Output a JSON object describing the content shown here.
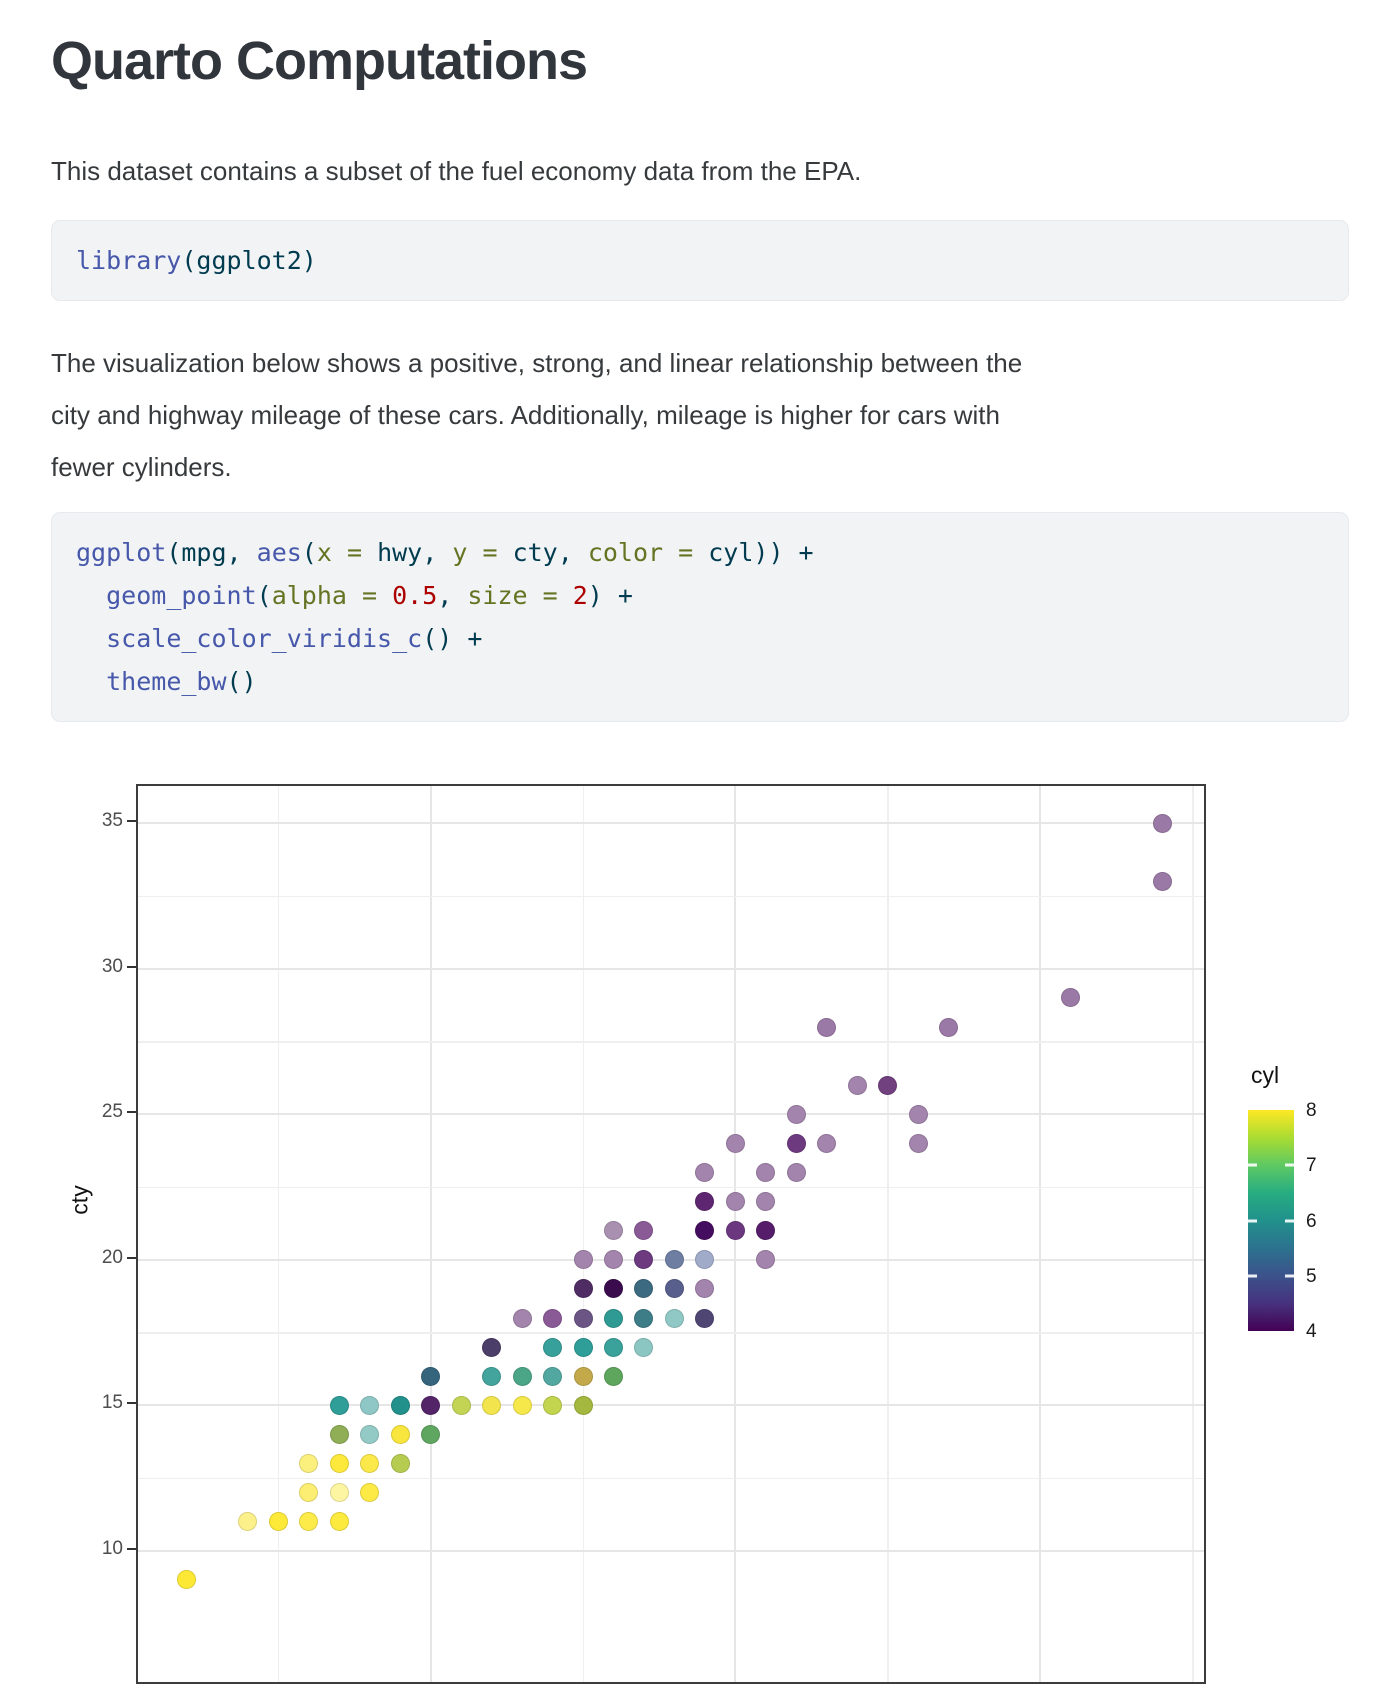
{
  "page": {
    "title": "Quarto Computations",
    "intro": "This dataset contains a subset of the fuel economy data from the EPA.",
    "description_lines": [
      "The visualization below shows a positive, strong, and linear relationship between the",
      "city and highway mileage of these cars. Additionally, mileage is higher for cars with",
      "fewer cylinders."
    ]
  },
  "syntax_colors": {
    "fu": "#4758AB",
    "at": "#657422",
    "fl": "#AD0000",
    "dv": "#AD0000",
    "ot": "#003B4F"
  },
  "code_blocks": [
    {
      "name": "library-call",
      "lines": [
        [
          {
            "t": "library",
            "c": "fu"
          },
          {
            "t": "(",
            "c": "ot"
          },
          {
            "t": "ggplot2",
            "c": "ot"
          },
          {
            "t": ")",
            "c": "ot"
          }
        ]
      ]
    },
    {
      "name": "ggplot-call",
      "lines": [
        [
          {
            "t": "ggplot",
            "c": "fu"
          },
          {
            "t": "(",
            "c": "ot"
          },
          {
            "t": "mpg",
            "c": "ot"
          },
          {
            "t": ", ",
            "c": "ot"
          },
          {
            "t": "aes",
            "c": "fu"
          },
          {
            "t": "(",
            "c": "ot"
          },
          {
            "t": "x = ",
            "c": "at"
          },
          {
            "t": "hwy",
            "c": "ot"
          },
          {
            "t": ", ",
            "c": "ot"
          },
          {
            "t": "y = ",
            "c": "at"
          },
          {
            "t": "cty",
            "c": "ot"
          },
          {
            "t": ", ",
            "c": "ot"
          },
          {
            "t": "color = ",
            "c": "at"
          },
          {
            "t": "cyl",
            "c": "ot"
          },
          {
            "t": ")) +",
            "c": "ot"
          }
        ],
        [
          {
            "t": "  ",
            "c": "ot"
          },
          {
            "t": "geom_point",
            "c": "fu"
          },
          {
            "t": "(",
            "c": "ot"
          },
          {
            "t": "alpha = ",
            "c": "at"
          },
          {
            "t": "0.5",
            "c": "fl"
          },
          {
            "t": ", ",
            "c": "ot"
          },
          {
            "t": "size = ",
            "c": "at"
          },
          {
            "t": "2",
            "c": "dv"
          },
          {
            "t": ") +",
            "c": "ot"
          }
        ],
        [
          {
            "t": "  ",
            "c": "ot"
          },
          {
            "t": "scale_color_viridis_c",
            "c": "fu"
          },
          {
            "t": "() +",
            "c": "ot"
          }
        ],
        [
          {
            "t": "  ",
            "c": "ot"
          },
          {
            "t": "theme_bw",
            "c": "fu"
          },
          {
            "t": "()",
            "c": "ot"
          }
        ]
      ]
    }
  ],
  "chart_data": {
    "type": "scatter",
    "x_field": "hwy",
    "y_field": "cty",
    "ylabel": "cty",
    "color_field": "cyl",
    "y_ticks": [
      35,
      30,
      25,
      20,
      15,
      10
    ],
    "y_minor_gridlines": [
      32.5,
      27.5,
      22.5,
      17.5,
      12.5
    ],
    "x_major_gridlines": [
      20,
      30,
      40
    ],
    "x_minor_gridlines": [
      15,
      25,
      35,
      45
    ],
    "x_axis_range": [
      10.1,
      45.2
    ],
    "grid": "on",
    "theme": "bw",
    "legend": {
      "title": "cyl",
      "position": "right",
      "ticks": [
        8,
        7,
        6,
        5,
        4
      ],
      "tick_marks": [
        7,
        6,
        5
      ],
      "viridis_gradient_top_to_bottom": [
        "#fde725",
        "#aadc32",
        "#5ec962",
        "#27ad81",
        "#21918c",
        "#2c728e",
        "#3b528b",
        "#46327e",
        "#440154"
      ]
    },
    "points": [
      {
        "hwy": 44,
        "cty": 35,
        "color": "#9b79a6"
      },
      {
        "hwy": 44,
        "cty": 33,
        "color": "#9b79a6"
      },
      {
        "hwy": 41,
        "cty": 29,
        "color": "#9b79a6"
      },
      {
        "hwy": 33,
        "cty": 28,
        "color": "#9b79a6"
      },
      {
        "hwy": 37,
        "cty": 28,
        "color": "#9b79a6"
      },
      {
        "hwy": 34,
        "cty": 26,
        "color": "#a284ac"
      },
      {
        "hwy": 35,
        "cty": 26,
        "color": "#71407f"
      },
      {
        "hwy": 32,
        "cty": 25,
        "color": "#a284ac"
      },
      {
        "hwy": 36,
        "cty": 25,
        "color": "#a284ac"
      },
      {
        "hwy": 30,
        "cty": 24,
        "color": "#a284ac"
      },
      {
        "hwy": 32,
        "cty": 24,
        "color": "#6d3a80"
      },
      {
        "hwy": 33,
        "cty": 24,
        "color": "#a284ac"
      },
      {
        "hwy": 36,
        "cty": 24,
        "color": "#a284ac"
      },
      {
        "hwy": 29,
        "cty": 23,
        "color": "#a284ac"
      },
      {
        "hwy": 31,
        "cty": 23,
        "color": "#a284ac"
      },
      {
        "hwy": 32,
        "cty": 23,
        "color": "#a284ac"
      },
      {
        "hwy": 29,
        "cty": 22,
        "color": "#5e2671"
      },
      {
        "hwy": 30,
        "cty": 22,
        "color": "#a284ac"
      },
      {
        "hwy": 31,
        "cty": 22,
        "color": "#a284ac"
      },
      {
        "hwy": 26,
        "cty": 21,
        "color": "#a990b1"
      },
      {
        "hwy": 27,
        "cty": 21,
        "color": "#8a5a97"
      },
      {
        "hwy": 29,
        "cty": 21,
        "color": "#450d5f"
      },
      {
        "hwy": 30,
        "cty": 21,
        "color": "#6b3880"
      },
      {
        "hwy": 31,
        "cty": 21,
        "color": "#561d6b"
      },
      {
        "hwy": 25,
        "cty": 20,
        "color": "#a284ac"
      },
      {
        "hwy": 26,
        "cty": 20,
        "color": "#a284ac"
      },
      {
        "hwy": 27,
        "cty": 20,
        "color": "#6d3a80"
      },
      {
        "hwy": 28,
        "cty": 20,
        "color": "#6e7ea3"
      },
      {
        "hwy": 29,
        "cty": 20,
        "color": "#9fabc9"
      },
      {
        "hwy": 31,
        "cty": 20,
        "color": "#a284ac"
      },
      {
        "hwy": 25,
        "cty": 19,
        "color": "#4f2c63"
      },
      {
        "hwy": 26,
        "cty": 19,
        "color": "#3a0c4e"
      },
      {
        "hwy": 27,
        "cty": 19,
        "color": "#3c6a80"
      },
      {
        "hwy": 28,
        "cty": 19,
        "color": "#585f8c"
      },
      {
        "hwy": 29,
        "cty": 19,
        "color": "#a284ac"
      },
      {
        "hwy": 23,
        "cty": 18,
        "color": "#a284ac"
      },
      {
        "hwy": 24,
        "cty": 18,
        "color": "#8a5a97"
      },
      {
        "hwy": 25,
        "cty": 18,
        "color": "#6a5585"
      },
      {
        "hwy": 26,
        "cty": 18,
        "color": "#2f9a94"
      },
      {
        "hwy": 27,
        "cty": 18,
        "color": "#3d7d88"
      },
      {
        "hwy": 28,
        "cty": 18,
        "color": "#90c8c6"
      },
      {
        "hwy": 29,
        "cty": 18,
        "color": "#4f4674"
      },
      {
        "hwy": 22,
        "cty": 17,
        "color": "#4b3e69"
      },
      {
        "hwy": 24,
        "cty": 17,
        "color": "#38a09a"
      },
      {
        "hwy": 25,
        "cty": 17,
        "color": "#2f9e98"
      },
      {
        "hwy": 26,
        "cty": 17,
        "color": "#3aa19b"
      },
      {
        "hwy": 27,
        "cty": 17,
        "color": "#8cc6c3"
      },
      {
        "hwy": 20,
        "cty": 16,
        "color": "#35647d"
      },
      {
        "hwy": 22,
        "cty": 16,
        "color": "#43a49e"
      },
      {
        "hwy": 23,
        "cty": 16,
        "color": "#4ba587"
      },
      {
        "hwy": 24,
        "cty": 16,
        "color": "#52a8a0"
      },
      {
        "hwy": 25,
        "cty": 16,
        "color": "#c3a94a"
      },
      {
        "hwy": 26,
        "cty": 16,
        "color": "#5ea55e"
      },
      {
        "hwy": 17,
        "cty": 15,
        "color": "#2f9e98"
      },
      {
        "hwy": 18,
        "cty": 15,
        "color": "#8ec7c5"
      },
      {
        "hwy": 19,
        "cty": 15,
        "color": "#22918b"
      },
      {
        "hwy": 20,
        "cty": 15,
        "color": "#542468"
      },
      {
        "hwy": 21,
        "cty": 15,
        "color": "#c3d455"
      },
      {
        "hwy": 22,
        "cty": 15,
        "color": "#f2e44c"
      },
      {
        "hwy": 23,
        "cty": 15,
        "color": "#f6e74a"
      },
      {
        "hwy": 24,
        "cty": 15,
        "color": "#c3d44e"
      },
      {
        "hwy": 25,
        "cty": 15,
        "color": "#a4b83f"
      },
      {
        "hwy": 17,
        "cty": 14,
        "color": "#8fae56"
      },
      {
        "hwy": 18,
        "cty": 14,
        "color": "#94cac6"
      },
      {
        "hwy": 19,
        "cty": 14,
        "color": "#f8e53d"
      },
      {
        "hwy": 20,
        "cty": 14,
        "color": "#5fa661"
      },
      {
        "hwy": 16,
        "cty": 13,
        "color": "#fbef7e"
      },
      {
        "hwy": 17,
        "cty": 13,
        "color": "#fde93c"
      },
      {
        "hwy": 18,
        "cty": 13,
        "color": "#fbe84a"
      },
      {
        "hwy": 19,
        "cty": 13,
        "color": "#b5cc51"
      },
      {
        "hwy": 16,
        "cty": 12,
        "color": "#fcee72"
      },
      {
        "hwy": 17,
        "cty": 12,
        "color": "#fdf5a2"
      },
      {
        "hwy": 18,
        "cty": 12,
        "color": "#fdea45"
      },
      {
        "hwy": 14,
        "cty": 11,
        "color": "#fcf08a"
      },
      {
        "hwy": 15,
        "cty": 11,
        "color": "#fde937"
      },
      {
        "hwy": 16,
        "cty": 11,
        "color": "#fdeb49"
      },
      {
        "hwy": 17,
        "cty": 11,
        "color": "#fdea3e"
      },
      {
        "hwy": 12,
        "cty": 9,
        "color": "#fde935"
      }
    ]
  }
}
